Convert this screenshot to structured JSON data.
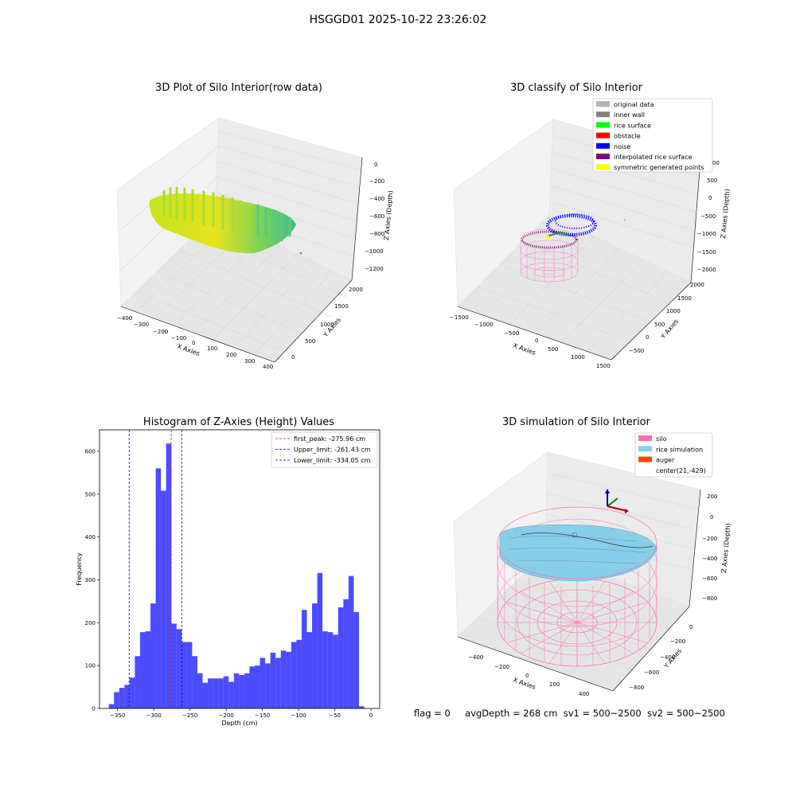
{
  "suptitle": "HSGGD01 2025-10-22 23:26:02",
  "panels": {
    "raw": {
      "title": "3D Plot of Silo Interior(row data)",
      "xlabel": "X Axies",
      "ylabel": "Y Axies",
      "zlabel": "Z Axies (Depth)",
      "xticks": [
        "−400",
        "−300",
        "−200",
        "−100",
        "0",
        "100",
        "200",
        "300",
        "400"
      ],
      "yticks": [
        "0",
        "500",
        "1000",
        "1500",
        "2000"
      ],
      "zticks": [
        "0",
        "−200",
        "−400",
        "−600",
        "−800",
        "−1000",
        "−1200"
      ]
    },
    "classify": {
      "title": "3D classify of Silo Interior",
      "xlabel": "X Axies",
      "ylabel": "Y Axies",
      "zlabel": "Z Axies (Depth)",
      "xticks": [
        "−1500",
        "−1000",
        "−500",
        "0",
        "500",
        "1000",
        "1500"
      ],
      "yticks": [
        "−500",
        "0",
        "500",
        "1000",
        "1500",
        "2000"
      ],
      "zticks": [
        "1000",
        "500",
        "0",
        "−500",
        "−1000",
        "−1500",
        "−2000"
      ],
      "legend": [
        {
          "label": "original data",
          "color": "#b3b3b3"
        },
        {
          "label": "inner wall",
          "color": "#808080"
        },
        {
          "label": "rice surface",
          "color": "#00ff00"
        },
        {
          "label": "obstacle",
          "color": "#ff0000"
        },
        {
          "label": "noise",
          "color": "#0000ff"
        },
        {
          "label": "interpolated rice surface",
          "color": "#800080"
        },
        {
          "label": "symmetric generated points",
          "color": "#ffff00"
        }
      ]
    },
    "simulation": {
      "title": "3D simulation of Silo Interior",
      "xlabel": "X Axies",
      "ylabel": "Y Axies",
      "zlabel": "Z Axies (Depth)",
      "xticks": [
        "−400",
        "−200",
        "0",
        "200",
        "400"
      ],
      "yticks": [
        "0",
        "−200",
        "−400",
        "−600",
        "−800"
      ],
      "zticks": [
        "200",
        "0",
        "−200",
        "−400",
        "−600",
        "−800"
      ],
      "legend": [
        {
          "label": "silo",
          "color": "#ff69b4"
        },
        {
          "label": "rice simulation",
          "color": "#87ceeb"
        },
        {
          "label": "auger",
          "color": "#ff4500"
        },
        {
          "label": "center(21,-429)",
          "color": ""
        }
      ]
    }
  },
  "chart_data": [
    {
      "type": "bar",
      "title": "Histogram of Z-Axies (Height) Values",
      "xlabel": "Depth (cm)",
      "ylabel": "Frequency",
      "xlim": [
        -375,
        12
      ],
      "ylim": [
        0,
        650
      ],
      "xticks": [
        -350,
        -300,
        -250,
        -200,
        -150,
        -100,
        -50,
        0
      ],
      "yticks": [
        0,
        100,
        200,
        300,
        400,
        500,
        600
      ],
      "bar_color": "#0000ff",
      "bin_width": 7.2,
      "bin_start": -362.2,
      "values": [
        10,
        38,
        48,
        55,
        72,
        122,
        178,
        180,
        245,
        560,
        508,
        618,
        198,
        185,
        155,
        155,
        122,
        82,
        60,
        70,
        70,
        70,
        75,
        62,
        82,
        78,
        82,
        98,
        100,
        118,
        105,
        130,
        118,
        135,
        132,
        155,
        160,
        230,
        178,
        245,
        316,
        180,
        178,
        172,
        236,
        255,
        309,
        225,
        5
      ],
      "vlines": [
        {
          "label": "first_peak: -275.96 cm",
          "x": -275.96,
          "color": "#ff0000"
        },
        {
          "label": "Upper_limit: -261.43 cm",
          "x": -261.43,
          "color": "#0000aa"
        },
        {
          "label": "Lower_limit: -334.05 cm",
          "x": -334.05,
          "color": "#0000aa"
        }
      ],
      "legend_position": "top-right"
    }
  ],
  "footer": {
    "flag": "flag = 0",
    "avg": "avgDepth = 268 cm",
    "sv1": "sv1 = 500~2500",
    "sv2": "sv2 = 500~2500"
  }
}
